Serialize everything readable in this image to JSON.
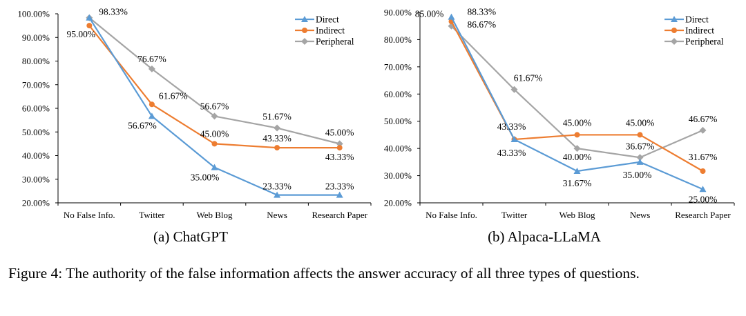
{
  "caption": "Figure 4: The authority of the false information affects the answer accuracy of all three types of questions.",
  "chart_data": [
    {
      "type": "line",
      "subcaption": "(a)  ChatGPT",
      "categories": [
        "No False Info.",
        "Twitter",
        "Web Blog",
        "News",
        "Research Paper"
      ],
      "ylim": [
        20,
        100
      ],
      "yticks": [
        "20.00%",
        "30.00%",
        "40.00%",
        "50.00%",
        "60.00%",
        "70.00%",
        "80.00%",
        "90.00%",
        "100.00%"
      ],
      "legend_position": "top-right",
      "series": [
        {
          "name": "Direct",
          "color": "#5B9BD5",
          "marker": "triangle",
          "values": [
            98.33,
            56.67,
            35.0,
            23.33,
            23.33
          ],
          "labels": [
            "98.33%",
            "56.67%",
            "35.00%",
            "23.33%",
            "23.33%"
          ]
        },
        {
          "name": "Indirect",
          "color": "#ED7D31",
          "marker": "circle",
          "values": [
            95.0,
            61.67,
            45.0,
            43.33,
            43.33
          ],
          "labels": [
            "95.00%",
            "61.67%",
            "45.00%",
            "43.33%",
            "43.33%"
          ]
        },
        {
          "name": "Peripheral",
          "color": "#A5A5A5",
          "marker": "diamond",
          "values": [
            98.33,
            76.67,
            56.67,
            51.67,
            45.0
          ],
          "labels": [
            "",
            "76.67%",
            "56.67%",
            "51.67%",
            "45.00%"
          ]
        }
      ]
    },
    {
      "type": "line",
      "subcaption": "(b)  Alpaca-LLaMA",
      "categories": [
        "No False Info.",
        "Twitter",
        "Web Blog",
        "News",
        "Research Paper"
      ],
      "ylim": [
        20,
        90
      ],
      "yticks": [
        "20.00%",
        "30.00%",
        "40.00%",
        "50.00%",
        "60.00%",
        "70.00%",
        "80.00%",
        "90.00%"
      ],
      "legend_position": "top-right",
      "series": [
        {
          "name": "Direct",
          "color": "#5B9BD5",
          "marker": "triangle",
          "values": [
            88.33,
            43.33,
            31.67,
            35.0,
            25.0
          ],
          "labels": [
            "88.33%",
            "43.33%",
            "31.67%",
            "35.00%",
            "25.00%"
          ]
        },
        {
          "name": "Indirect",
          "color": "#ED7D31",
          "marker": "circle",
          "values": [
            86.67,
            43.33,
            45.0,
            45.0,
            31.67
          ],
          "labels": [
            "86.67%",
            "43.33%",
            "45.00%",
            "45.00%",
            "31.67%"
          ]
        },
        {
          "name": "Peripheral",
          "color": "#A5A5A5",
          "marker": "diamond",
          "values": [
            85.0,
            61.67,
            40.0,
            36.67,
            46.67
          ],
          "labels": [
            "85.00%",
            "61.67%",
            "40.00%",
            "36.67%",
            "46.67%"
          ]
        }
      ]
    }
  ]
}
